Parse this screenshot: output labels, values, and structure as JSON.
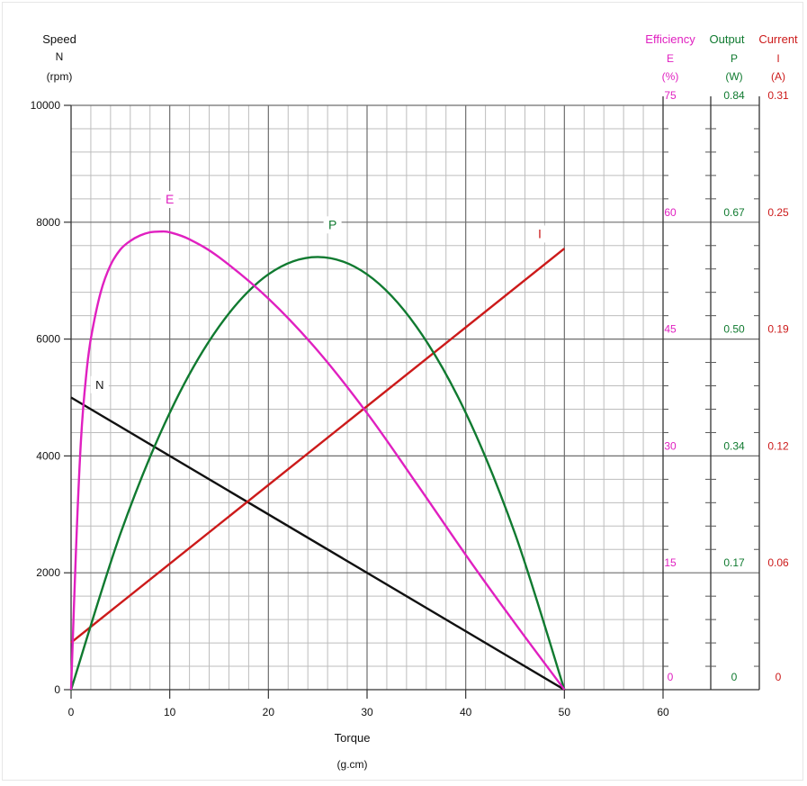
{
  "chart_data": {
    "type": "line",
    "x_axis": {
      "title": "Torque",
      "unit": "(g.cm)",
      "range": [
        0,
        60
      ],
      "ticks": [
        0,
        10,
        20,
        30,
        40,
        50,
        60
      ]
    },
    "y_axis": {
      "title": "Speed",
      "symbol": "N",
      "unit": "(rpm)",
      "range": [
        0,
        10000
      ],
      "ticks": [
        0,
        2000,
        4000,
        6000,
        8000,
        10000
      ]
    },
    "right_axes": [
      {
        "title": "Efficiency",
        "symbol": "E",
        "unit": "(%)",
        "color": "#e020c0",
        "labels": [
          "0",
          "15",
          "30",
          "45",
          "60",
          "75"
        ]
      },
      {
        "title": "Output",
        "symbol": "P",
        "unit": "(W)",
        "color": "#107a30",
        "labels": [
          "0",
          "0.17",
          "0.34",
          "0.50",
          "0.67",
          "0.84"
        ]
      },
      {
        "title": "Current",
        "symbol": "I",
        "unit": "(A)",
        "color": "#cc1a1a",
        "labels": [
          "0",
          "0.06",
          "0.12",
          "0.19",
          "0.25",
          "0.31"
        ]
      }
    ],
    "grid": true,
    "series": [
      {
        "name": "N",
        "color": "#111111",
        "x": [
          0,
          50
        ],
        "y": [
          5000,
          0
        ]
      },
      {
        "name": "I",
        "color": "#cc1a1a",
        "x": [
          0,
          50
        ],
        "y": [
          0.025,
          0.234
        ]
      },
      {
        "name": "P",
        "color": "#107a30",
        "x": [
          0,
          5,
          10,
          15,
          20,
          25,
          30,
          35,
          40,
          45,
          50
        ],
        "y": [
          0,
          0.224,
          0.398,
          0.522,
          0.597,
          0.622,
          0.597,
          0.522,
          0.398,
          0.224,
          0
        ]
      },
      {
        "name": "E",
        "color": "#e020c0",
        "x": [
          0,
          0.5,
          1,
          1.5,
          2,
          3,
          4,
          5,
          6,
          7,
          8,
          9,
          10,
          12,
          15,
          20,
          25,
          30,
          35,
          40,
          45,
          50
        ],
        "y": [
          0,
          18,
          32,
          40,
          45,
          51,
          54.5,
          56.5,
          57.6,
          58.3,
          58.7,
          58.8,
          58.7,
          57.8,
          55.5,
          50.2,
          43.5,
          35.5,
          26.5,
          17.3,
          8.5,
          0
        ]
      }
    ]
  }
}
